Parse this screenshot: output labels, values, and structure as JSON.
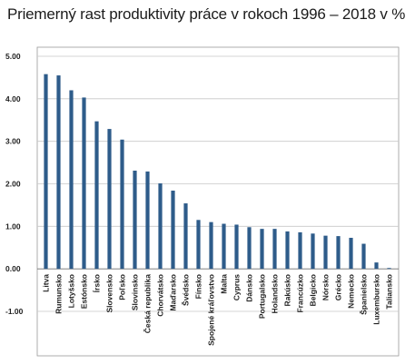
{
  "title": "Priemerný rast produktivity práce v rokoch 1996 – 2018 v %",
  "colors": {
    "bar": "#2e5c8a",
    "grid": "#c8c8c8",
    "frame": "#9a9a9a"
  },
  "chart_data": {
    "type": "bar",
    "title": "Priemerný rast produktivity práce v rokoch 1996 – 2018 v %",
    "xlabel": "",
    "ylabel": "",
    "ylim": [
      -1,
      5
    ],
    "yticks": [
      "5.00",
      "4.00",
      "3.00",
      "2.00",
      "1.00",
      "0.00",
      "-1.00"
    ],
    "ytick_values": [
      5,
      4,
      3,
      2,
      1,
      0,
      -1
    ],
    "grid": true,
    "legend": "none",
    "categories": [
      "Litva",
      "Rumunsko",
      "Lotyšsko",
      "Estónsko",
      "Írsko",
      "Slovensko",
      "Poľsko",
      "Slovinsko",
      "Česká republika",
      "Chorvátsko",
      "Maďarsko",
      "Švédsko",
      "Fínsko",
      "Spojené kráľovstvo",
      "Malta",
      "Cyprus",
      "Dánsko",
      "Portugalsko",
      "Holandsko",
      "Rakúsko",
      "Francúzko",
      "Belgicko",
      "Nórsko",
      "Grécko",
      "Nemecko",
      "Španielsko",
      "Luxembursko",
      "Taliansko"
    ],
    "values": [
      4.58,
      4.55,
      4.2,
      4.03,
      3.47,
      3.29,
      3.04,
      2.31,
      2.29,
      2.01,
      1.84,
      1.54,
      1.15,
      1.1,
      1.06,
      1.04,
      0.98,
      0.94,
      0.94,
      0.88,
      0.86,
      0.83,
      0.78,
      0.77,
      0.73,
      0.59,
      0.15,
      0.02
    ]
  }
}
